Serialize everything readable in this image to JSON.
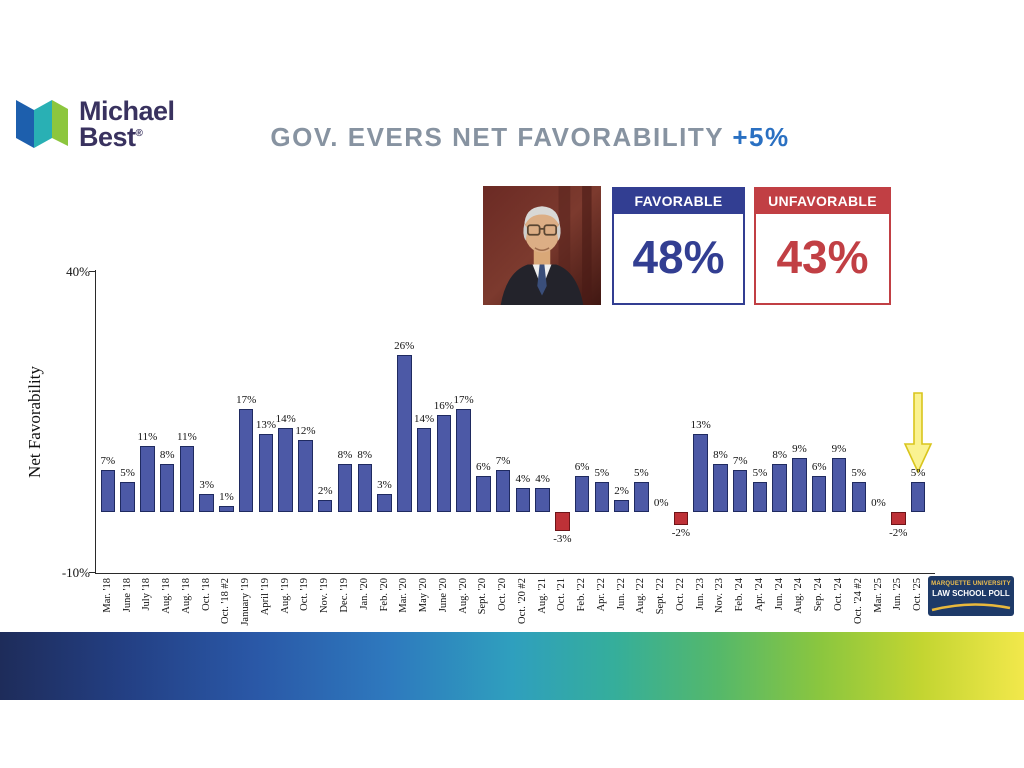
{
  "branding": {
    "name_line1": "Michael",
    "name_line2": "Best",
    "registered": "®"
  },
  "title": {
    "text": "GOV. EVERS NET FAVORABILITY",
    "net_value": "+5%"
  },
  "scoreboard": {
    "favorable": {
      "label": "FAVORABLE",
      "value": "48%"
    },
    "unfavorable": {
      "label": "UNFAVORABLE",
      "value": "43%"
    }
  },
  "chart_data": {
    "type": "bar",
    "title": "Gov. Evers Net Favorability",
    "ylabel": "Net Favorability",
    "ylim": [
      -10,
      40
    ],
    "ytick_labels": {
      "top": "40%",
      "bottom": "-10%"
    },
    "grid": false,
    "legend": "none",
    "categories": [
      "Mar. '18",
      "June '18",
      "July '18",
      "Aug. '18",
      "Aug. '18",
      "Oct. '18",
      "Oct. '18 #2",
      "January '19",
      "April '19",
      "Aug. '19",
      "Oct. '19",
      "Nov. '19",
      "Dec. '19",
      "Jan. '20",
      "Feb. '20",
      "Mar. '20",
      "May '20",
      "June '20",
      "Aug. '20",
      "Sept. '20",
      "Oct. '20",
      "Oct. '20 #2",
      "Aug. '21",
      "Oct. '21",
      "Feb. '22",
      "Apr. '22",
      "Jun. '22",
      "Aug. '22",
      "Sept. '22",
      "Oct. '22",
      "Jun. '23",
      "Nov. '23",
      "Feb. '24",
      "Apr. '24",
      "Jun. '24",
      "Aug. '24",
      "Sep. '24",
      "Oct. '24",
      "Oct. '24 #2",
      "Mar. '25",
      "Jun. '25",
      "Oct. '25"
    ],
    "values": [
      7,
      5,
      11,
      8,
      11,
      3,
      1,
      17,
      13,
      14,
      12,
      2,
      8,
      8,
      3,
      26,
      14,
      16,
      17,
      6,
      7,
      4,
      4,
      -3,
      6,
      5,
      2,
      5,
      0,
      -2,
      13,
      8,
      7,
      5,
      8,
      9,
      6,
      9,
      5,
      0,
      -2,
      5
    ],
    "value_label_format": "{v}%",
    "colors": {
      "positive_bar": "#4C59A6",
      "negative_bar": "#BE3137"
    },
    "annotations": [
      {
        "type": "down-arrow",
        "target_category": "Oct. '25",
        "target_value": 5,
        "color": "#FAF291"
      }
    ]
  },
  "footer": {
    "poll_logo_line1": "MARQUETTE UNIVERSITY",
    "poll_logo_line2": "LAW SCHOOL POLL"
  }
}
